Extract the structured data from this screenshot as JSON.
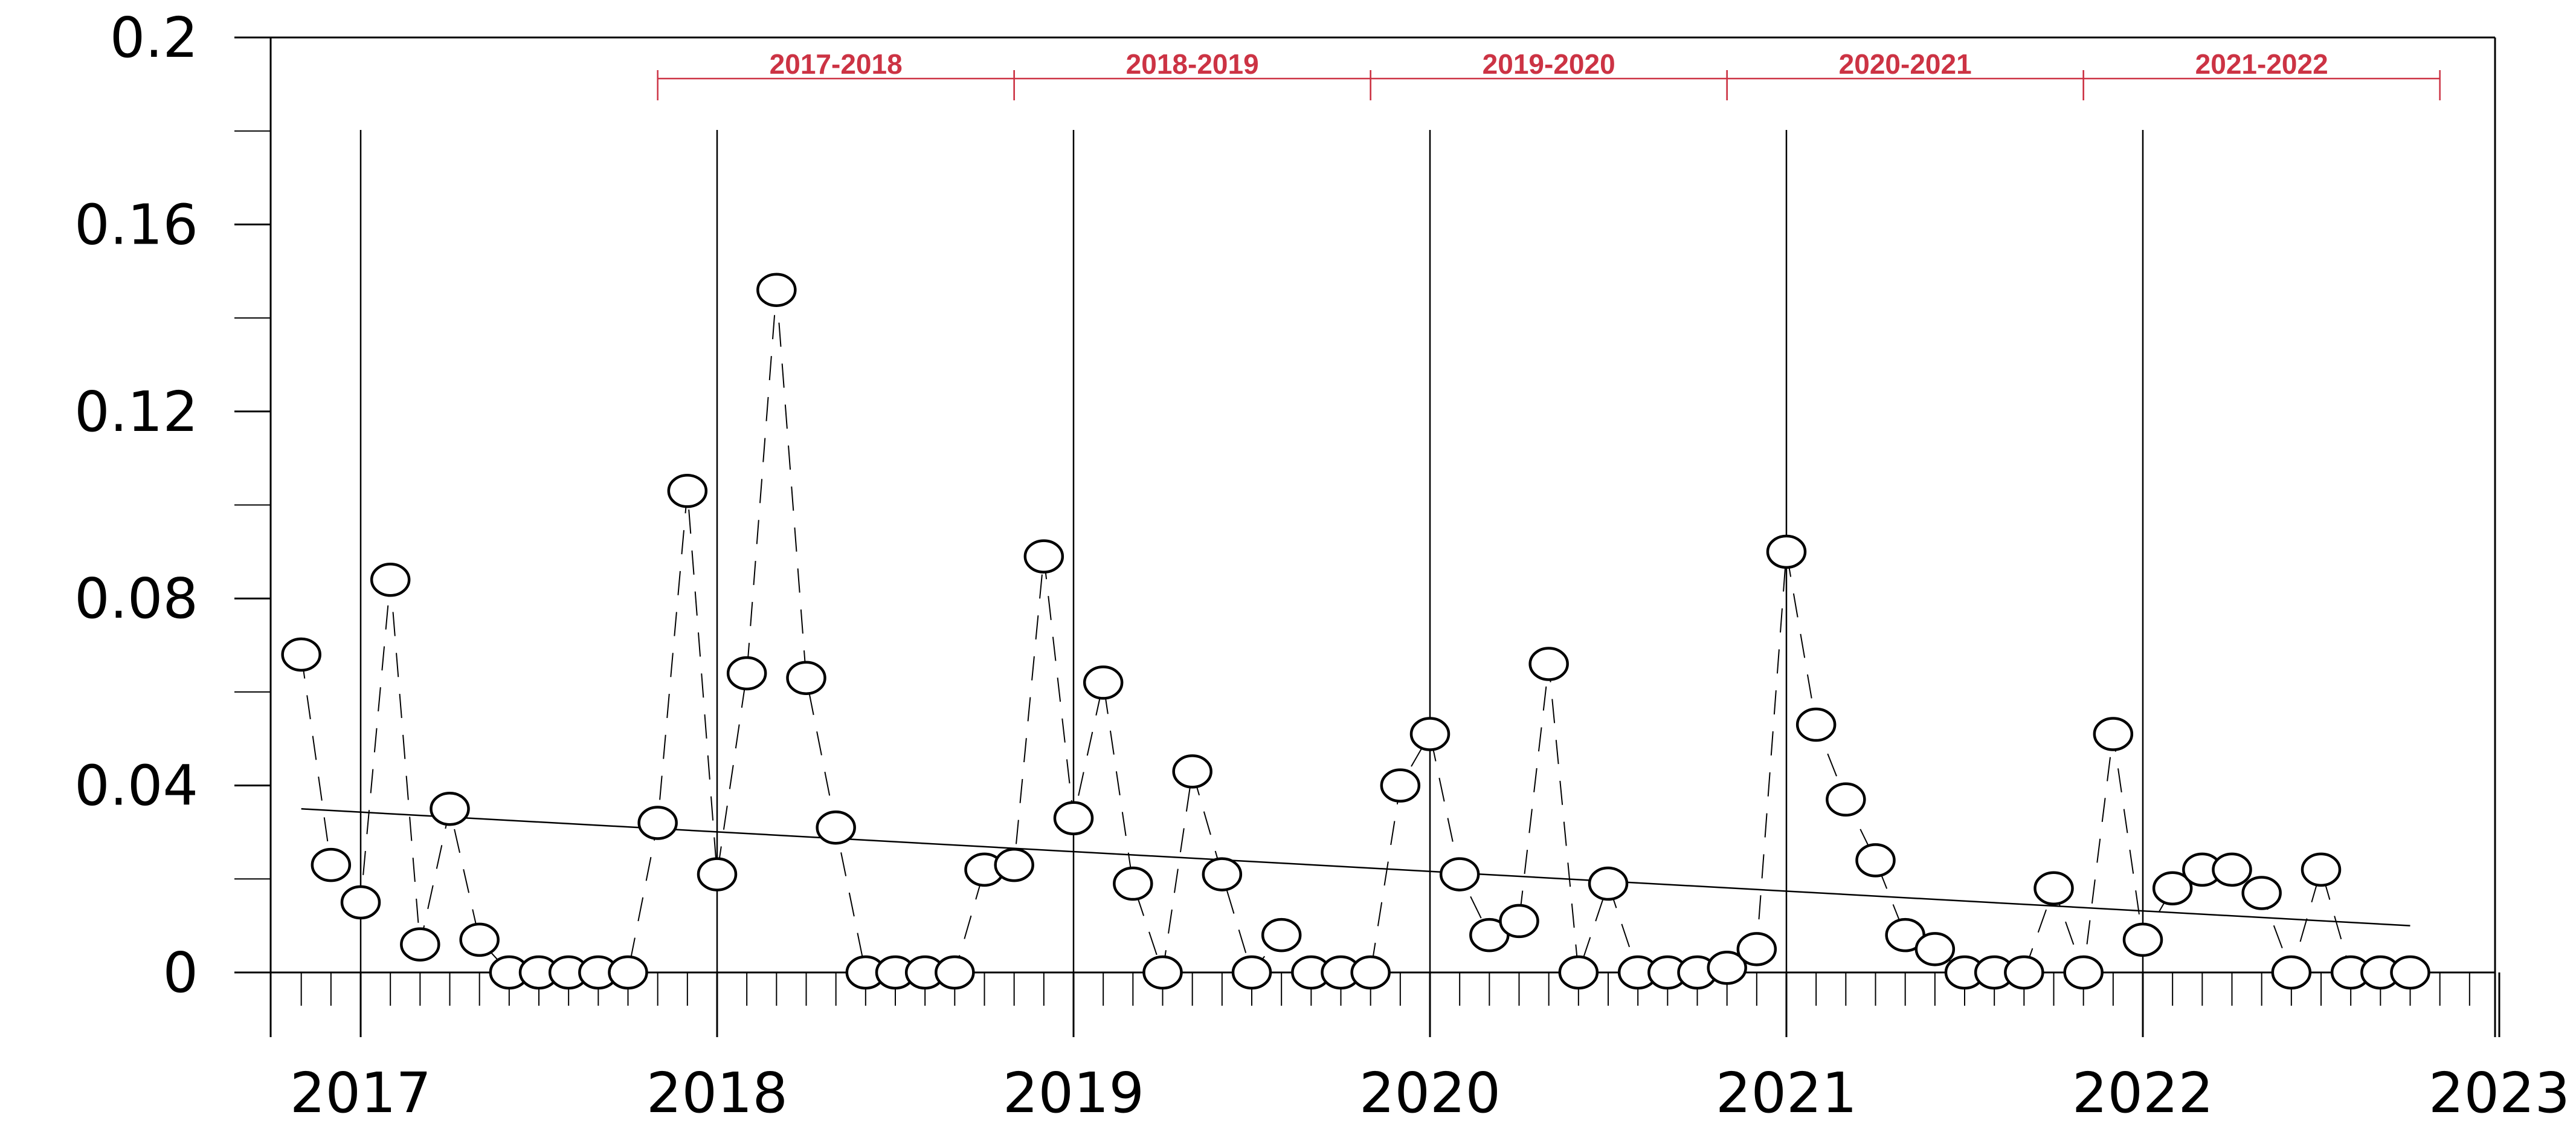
{
  "chart_data": {
    "type": "scatter",
    "title": "",
    "xlabel": "",
    "ylabel": "",
    "ylim": [
      0,
      0.2
    ],
    "xlim": [
      "2016-10",
      "2023-01"
    ],
    "y_ticks": [
      "0",
      "0.04",
      "0.08",
      "0.12",
      "0.16",
      "0.2"
    ],
    "x_ticks": [
      "2017",
      "2018",
      "2019",
      "2020",
      "2021",
      "2022",
      "2023"
    ],
    "grid": false,
    "colors": {
      "points": "#000000",
      "trend": "#000000",
      "seasons": "#cc3344"
    },
    "seasons": [
      {
        "label": "2017-2018",
        "start": "2017-11",
        "end": "2018-10"
      },
      {
        "label": "2018-2019",
        "start": "2018-11",
        "end": "2019-10"
      },
      {
        "label": "2019-2020",
        "start": "2019-11",
        "end": "2020-10"
      },
      {
        "label": "2020-2021",
        "start": "2020-11",
        "end": "2021-10"
      },
      {
        "label": "2021-2022",
        "start": "2021-11",
        "end": "2022-10"
      }
    ],
    "series": [
      {
        "x": [
          "2016-11",
          "2016-12",
          "2017-01",
          "2017-02",
          "2017-03",
          "2017-04",
          "2017-05",
          "2017-06",
          "2017-07",
          "2017-08",
          "2017-09",
          "2017-10",
          "2017-11",
          "2017-12",
          "2018-01",
          "2018-02",
          "2018-03",
          "2018-04",
          "2018-05",
          "2018-06",
          "2018-07",
          "2018-08",
          "2018-09",
          "2018-10",
          "2018-11",
          "2018-12",
          "2019-01",
          "2019-02",
          "2019-03",
          "2019-04",
          "2019-05",
          "2019-06",
          "2019-07",
          "2019-08",
          "2019-09",
          "2019-10",
          "2019-11",
          "2019-12",
          "2020-01",
          "2020-02",
          "2020-03",
          "2020-04",
          "2020-05",
          "2020-06",
          "2020-07",
          "2020-08",
          "2020-09",
          "2020-10",
          "2020-11",
          "2020-12",
          "2021-01",
          "2021-02",
          "2021-03",
          "2021-04",
          "2021-05",
          "2021-06",
          "2021-07",
          "2021-08",
          "2021-09",
          "2021-10",
          "2021-11",
          "2021-12",
          "2022-01",
          "2022-02",
          "2022-03",
          "2022-04",
          "2022-05",
          "2022-06",
          "2022-07",
          "2022-08",
          "2022-09",
          "2022-10"
        ],
        "values": [
          0.068,
          0.023,
          0.015,
          0.084,
          0.006,
          0.035,
          0.007,
          0,
          0,
          0,
          0,
          0,
          0.032,
          0.103,
          0.021,
          0.064,
          0.146,
          0.063,
          0.031,
          0,
          0,
          0,
          0,
          0.022,
          0.023,
          0.089,
          0.033,
          0.062,
          0.019,
          0,
          0.043,
          0.021,
          0,
          0.008,
          0,
          0,
          0,
          0.04,
          0.051,
          0.021,
          0.008,
          0.011,
          0.066,
          0,
          0.019,
          0,
          0,
          0,
          0.001,
          0.005,
          0.09,
          0.053,
          0.037,
          0.024,
          0.008,
          0.005,
          0,
          0,
          0,
          0.018,
          0,
          0.051,
          0.007,
          0.018,
          0.022,
          0.022,
          0.017,
          0,
          0.022,
          0,
          0,
          0
        ]
      }
    ],
    "trend": {
      "x": [
        "2016-11",
        "2022-10"
      ],
      "values": [
        0.035,
        0.01
      ]
    }
  }
}
